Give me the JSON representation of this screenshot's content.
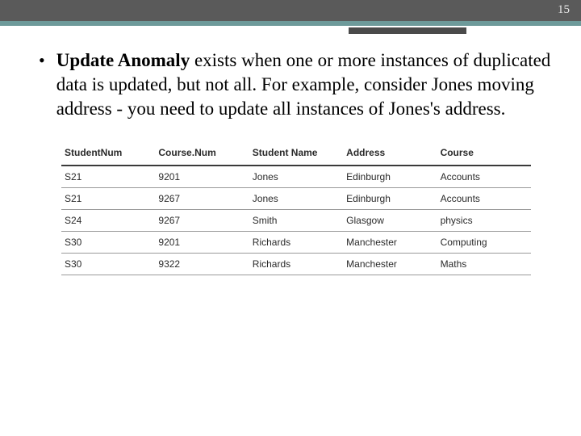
{
  "page_number": "15",
  "colors": {
    "header_bg": "#5a5a5a",
    "teal": "#6d9a9a",
    "accent": "#4a4a4a",
    "text": "#000000",
    "table_text": "#2a2a2a",
    "th_border": "#3a3a3a",
    "td_border": "#9a9a9a"
  },
  "body": {
    "bold_lead": "Update Anomaly",
    "rest": " exists when one or more instances of duplicated data is updated, but not all. For example, consider Jones moving address - you need to update all instances of Jones's address."
  },
  "table": {
    "type": "table",
    "header_fontsize": 12,
    "cell_fontsize": 12,
    "columns": [
      "StudentNum",
      "Course.Num",
      "Student Name",
      "Address",
      "Course"
    ],
    "col_widths_pct": [
      20,
      20,
      20,
      20,
      20
    ],
    "rows": [
      [
        "S21",
        "9201",
        "Jones",
        "Edinburgh",
        "Accounts"
      ],
      [
        "S21",
        "9267",
        "Jones",
        "Edinburgh",
        "Accounts"
      ],
      [
        "S24",
        "9267",
        "Smith",
        "Glasgow",
        "physics"
      ],
      [
        "S30",
        "9201",
        "Richards",
        "Manchester",
        "Computing"
      ],
      [
        "S30",
        "9322",
        "Richards",
        "Manchester",
        "Maths"
      ]
    ]
  }
}
